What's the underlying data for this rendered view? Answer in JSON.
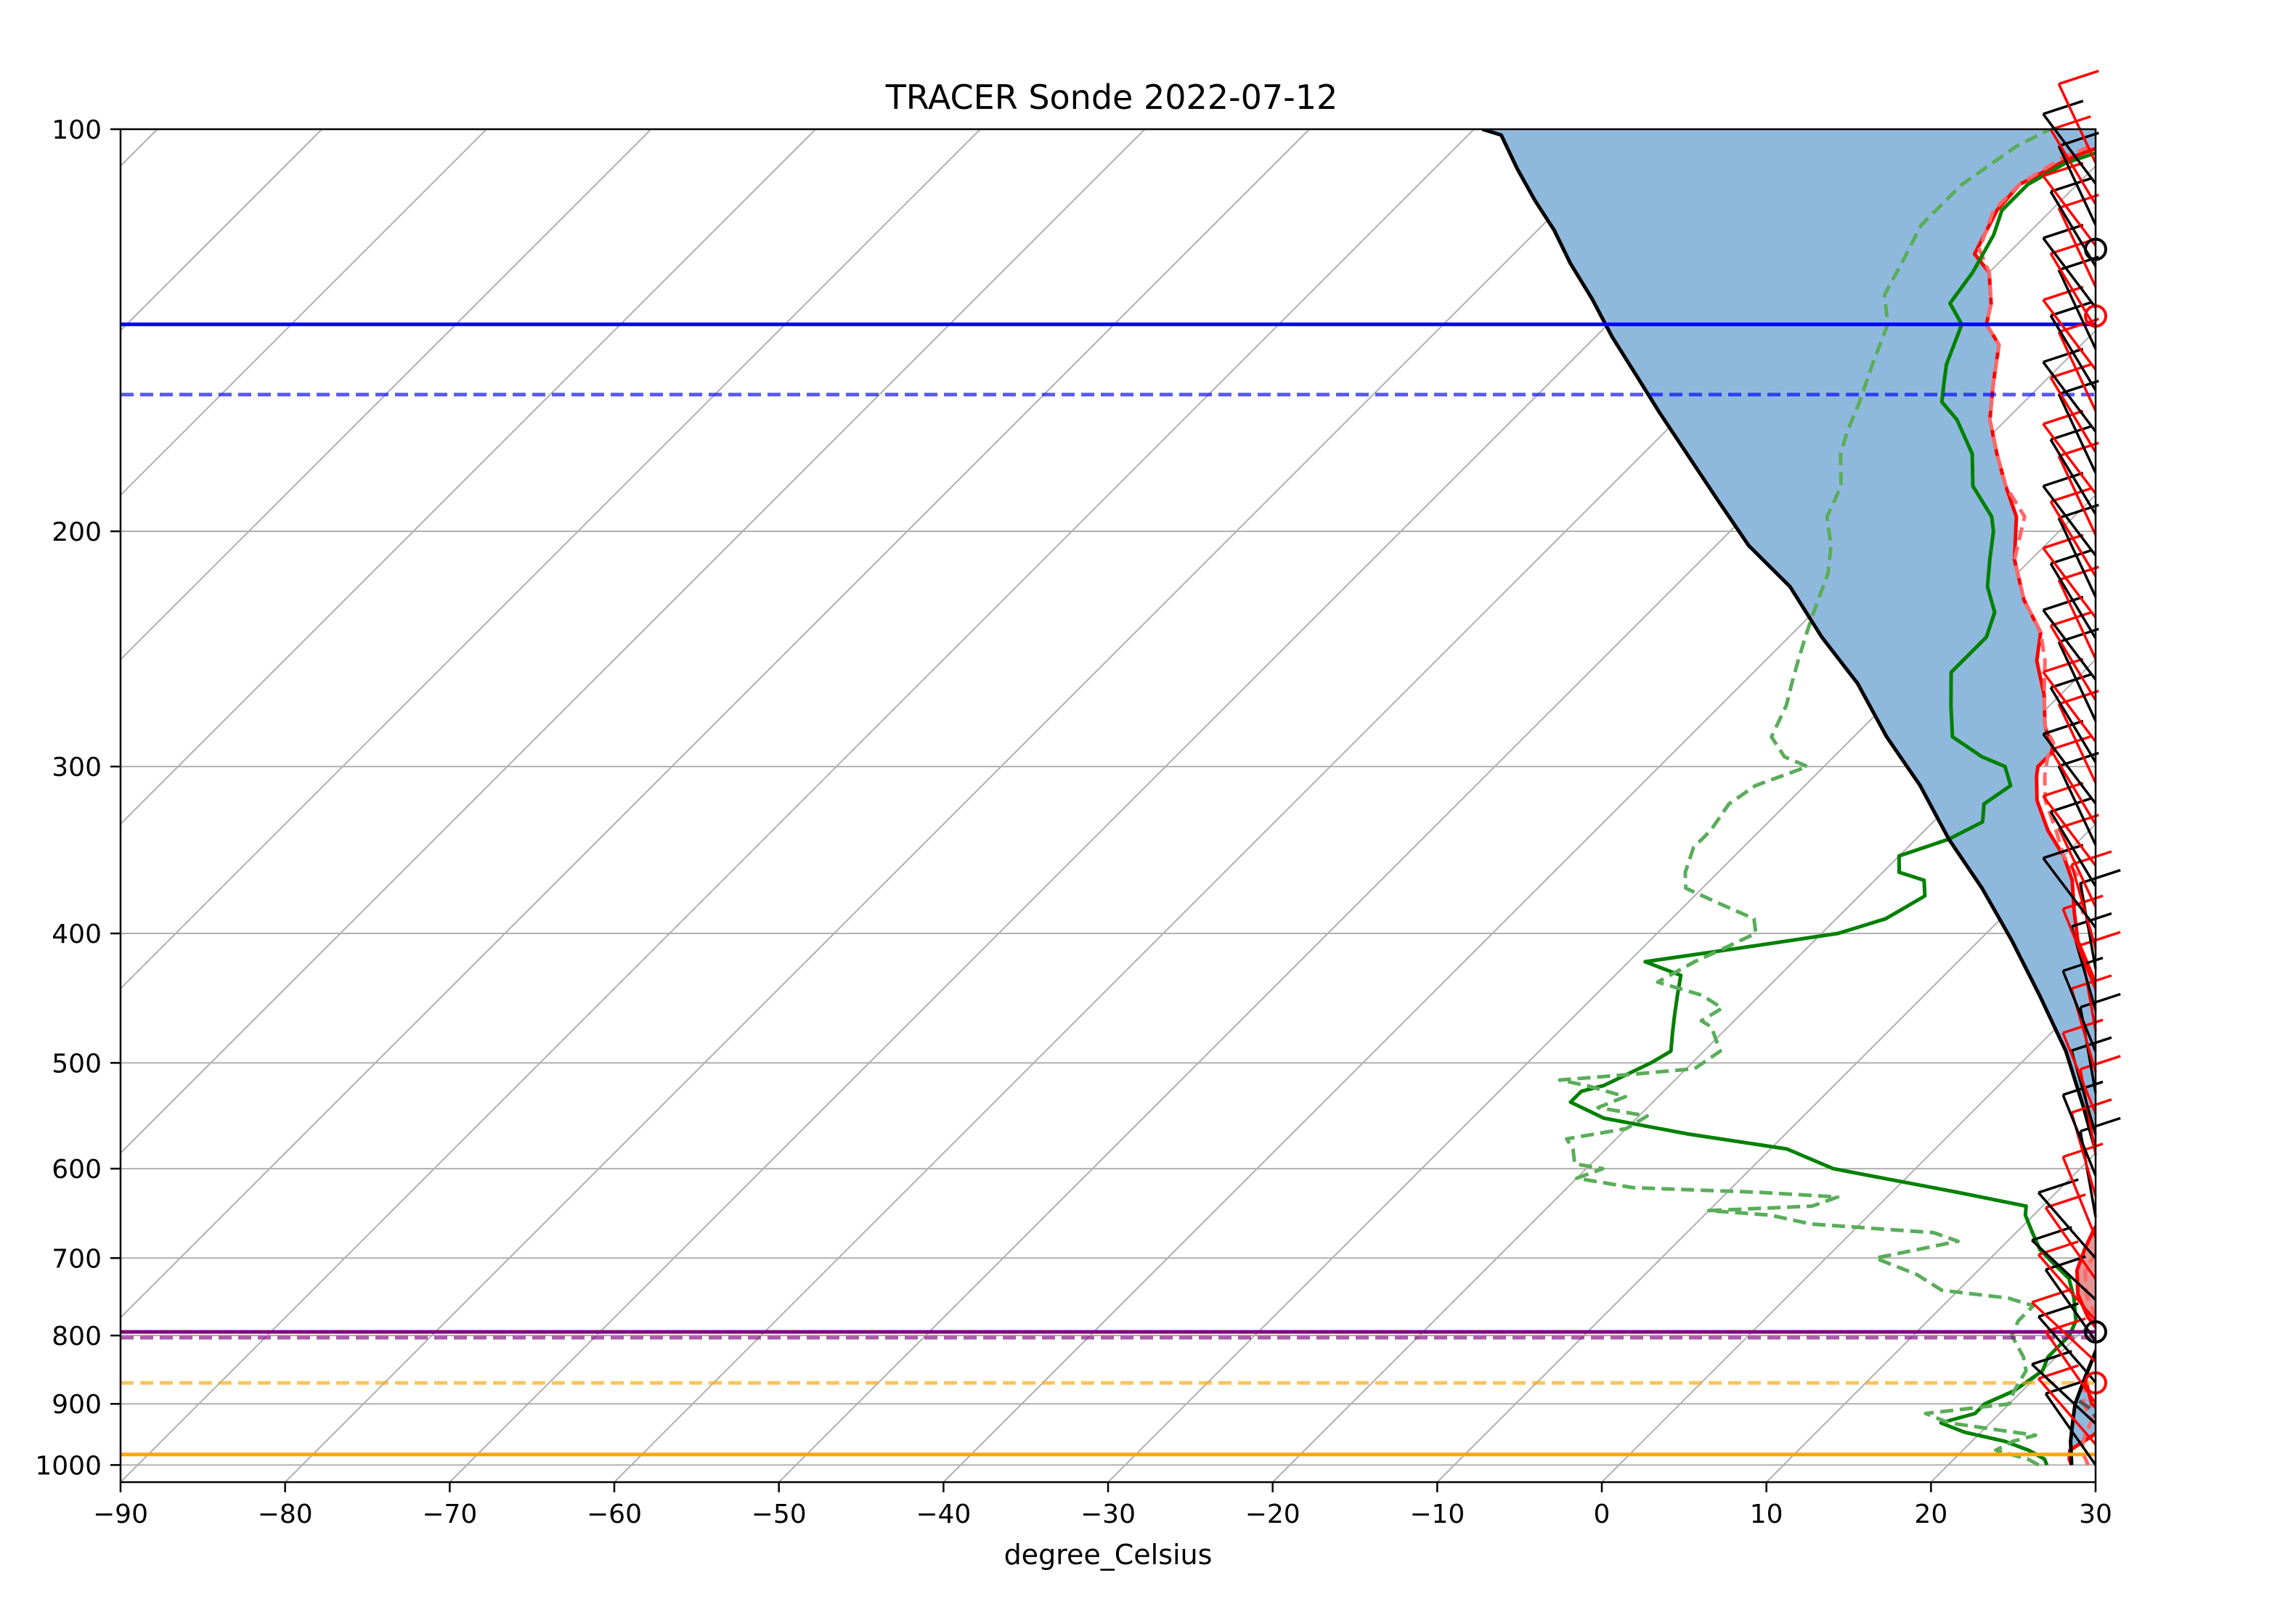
{
  "chart_data": {
    "type": "line",
    "title": "TRACER Sonde 2022-07-12",
    "xlabel": "degree_Celsius",
    "ylabel": "",
    "xlim": [
      -90,
      30
    ],
    "ylim": [
      1030,
      100
    ],
    "y_scale": "log",
    "grid": true,
    "x_ticks": [
      -90,
      -80,
      -70,
      -60,
      -50,
      -40,
      -30,
      -20,
      -10,
      0,
      10,
      20,
      30
    ],
    "y_ticks": [
      100,
      200,
      300,
      400,
      500,
      600,
      700,
      800,
      900,
      1000
    ],
    "skew_isotherms": [
      -200,
      -190,
      -180,
      -170,
      -160,
      -150,
      -140,
      -130,
      -120,
      -110,
      -100,
      -90,
      -80,
      -70,
      -60,
      -50,
      -40,
      -30,
      -20,
      -10,
      0,
      10,
      20,
      30
    ],
    "colors": {
      "temperature": "#ff0000",
      "temperature_alt": "#ff6666",
      "dewpoint": "#008000",
      "dewpoint_alt": "#5aad5a",
      "parcel": "#000000",
      "cape": "#e69595",
      "cin": "#8fb9dc",
      "lcl": "#800080",
      "lfc": "#ffa500",
      "el": "#0000ff",
      "grid": "#b0b0b0"
    },
    "series": [
      {
        "key": "temperature",
        "style": "solid",
        "points": [
          [
            27.5,
            1000
          ],
          [
            27,
            990
          ],
          [
            26.5,
            975
          ],
          [
            27,
            950
          ],
          [
            27.2,
            925
          ],
          [
            25,
            900
          ],
          [
            23,
            860
          ],
          [
            21.5,
            800
          ],
          [
            19.5,
            775
          ],
          [
            17.5,
            745
          ],
          [
            16,
            715
          ],
          [
            15.2,
            690
          ],
          [
            14.5,
            665
          ],
          [
            14.5,
            640
          ],
          [
            13.5,
            610
          ],
          [
            12.5,
            580
          ],
          [
            11,
            560
          ],
          [
            9,
            530
          ],
          [
            5.5,
            495
          ],
          [
            2,
            460
          ],
          [
            -1,
            430
          ],
          [
            -4,
            405
          ],
          [
            -6,
            385
          ],
          [
            -8,
            365
          ],
          [
            -10,
            350
          ],
          [
            -12.5,
            335
          ],
          [
            -15,
            318
          ],
          [
            -16.5,
            305
          ],
          [
            -17,
            300
          ],
          [
            -17,
            292
          ],
          [
            -19,
            280
          ],
          [
            -21,
            265
          ],
          [
            -23.5,
            250
          ],
          [
            -25,
            238
          ],
          [
            -28,
            225
          ],
          [
            -31,
            210
          ],
          [
            -33.5,
            195
          ],
          [
            -36,
            185
          ],
          [
            -38.5,
            175
          ],
          [
            -41,
            165
          ],
          [
            -43,
            155
          ],
          [
            -45,
            145
          ],
          [
            -47,
            140
          ],
          [
            -48,
            135
          ],
          [
            -50,
            128
          ],
          [
            -52,
            124
          ],
          [
            -53.3,
            115
          ],
          [
            -53.5,
            110
          ],
          [
            -52,
            105
          ],
          [
            -49,
            100
          ]
        ]
      },
      {
        "key": "temperature_alt",
        "style": "dashed",
        "points": [
          [
            28.5,
            1000
          ],
          [
            28,
            990
          ],
          [
            27.2,
            975
          ],
          [
            26.5,
            950
          ],
          [
            26,
            925
          ],
          [
            24.5,
            900
          ],
          [
            23,
            860
          ],
          [
            21.5,
            800
          ],
          [
            20,
            775
          ],
          [
            18,
            745
          ],
          [
            16.5,
            715
          ],
          [
            16,
            690
          ],
          [
            15.5,
            665
          ],
          [
            15.5,
            640
          ],
          [
            15,
            610
          ],
          [
            14.2,
            580
          ],
          [
            12.8,
            560
          ],
          [
            10,
            530
          ],
          [
            6,
            495
          ],
          [
            2.5,
            460
          ],
          [
            -0.5,
            430
          ],
          [
            -3,
            405
          ],
          [
            -5.5,
            385
          ],
          [
            -7.5,
            365
          ],
          [
            -10,
            350
          ],
          [
            -12,
            335
          ],
          [
            -14.5,
            318
          ],
          [
            -16,
            305
          ],
          [
            -17,
            295
          ],
          [
            -17.5,
            288
          ],
          [
            -19,
            280
          ],
          [
            -21,
            265
          ],
          [
            -23,
            250
          ],
          [
            -25,
            238
          ],
          [
            -28,
            225
          ],
          [
            -31,
            210
          ],
          [
            -33,
            195
          ],
          [
            -36,
            185
          ],
          [
            -38.5,
            175
          ],
          [
            -41,
            165
          ],
          [
            -43,
            155
          ],
          [
            -45,
            145
          ],
          [
            -47,
            140
          ],
          [
            -48,
            135
          ],
          [
            -50,
            128
          ],
          [
            -52,
            123
          ],
          [
            -53.5,
            115
          ],
          [
            -53.5,
            110
          ],
          [
            -52.5,
            105
          ],
          [
            -50,
            100
          ]
        ]
      },
      {
        "key": "dewpoint",
        "style": "solid",
        "points": [
          [
            26,
            1000
          ],
          [
            25.5,
            990
          ],
          [
            24,
            975
          ],
          [
            22,
            960
          ],
          [
            19,
            945
          ],
          [
            17,
            930
          ],
          [
            18.5,
            915
          ],
          [
            18.5,
            900
          ],
          [
            19.5,
            880
          ],
          [
            20,
            850
          ],
          [
            19.5,
            830
          ],
          [
            19.5,
            800
          ],
          [
            19,
            780
          ],
          [
            17.5,
            750
          ],
          [
            16,
            725
          ],
          [
            14.5,
            710
          ],
          [
            12.5,
            690
          ],
          [
            11,
            670
          ],
          [
            9.5,
            650
          ],
          [
            9,
            640
          ],
          [
            4,
            625
          ],
          [
            -5,
            600
          ],
          [
            -9,
            580
          ],
          [
            -16,
            565
          ],
          [
            -22,
            550
          ],
          [
            -25,
            535
          ],
          [
            -25,
            525
          ],
          [
            -24,
            520
          ],
          [
            -22.5,
            500
          ],
          [
            -22,
            490
          ],
          [
            -23,
            475
          ],
          [
            -24,
            460
          ],
          [
            -25,
            445
          ],
          [
            -26,
            430
          ],
          [
            -29,
            420
          ],
          [
            -24,
            410
          ],
          [
            -19,
            400
          ],
          [
            -17,
            390
          ],
          [
            -16,
            375
          ],
          [
            -17,
            365
          ],
          [
            -19,
            360
          ],
          [
            -20,
            350
          ],
          [
            -18,
            340
          ],
          [
            -17,
            330
          ],
          [
            -18,
            320
          ],
          [
            -17.5,
            310
          ],
          [
            -19,
            300
          ],
          [
            -21,
            295
          ],
          [
            -24,
            285
          ],
          [
            -26,
            270
          ],
          [
            -28,
            255
          ],
          [
            -28,
            245
          ],
          [
            -28,
            240
          ],
          [
            -29,
            230
          ],
          [
            -31,
            220
          ],
          [
            -32.5,
            210
          ],
          [
            -34,
            200
          ],
          [
            -35,
            195
          ],
          [
            -38,
            185
          ],
          [
            -40,
            175
          ],
          [
            -43,
            165
          ],
          [
            -45,
            160
          ],
          [
            -46,
            155
          ],
          [
            -47,
            150
          ],
          [
            -48.5,
            140
          ],
          [
            -50.5,
            135
          ],
          [
            -51,
            128
          ],
          [
            -52,
            120
          ],
          [
            -53,
            115
          ],
          [
            -53,
            110
          ],
          [
            -52,
            106
          ],
          [
            -50,
            103
          ],
          [
            -47,
            100
          ]
        ]
      },
      {
        "key": "dewpoint_alt",
        "style": "dashed",
        "points": [
          [
            25.5,
            1000
          ],
          [
            24.5,
            990
          ],
          [
            22,
            975
          ],
          [
            22.5,
            960
          ],
          [
            23.5,
            950
          ],
          [
            20.5,
            940
          ],
          [
            17.5,
            930
          ],
          [
            15.5,
            915
          ],
          [
            20,
            900
          ],
          [
            19.5,
            880
          ],
          [
            19,
            850
          ],
          [
            18,
            830
          ],
          [
            16,
            800
          ],
          [
            15.5,
            780
          ],
          [
            15.5,
            760
          ],
          [
            13.5,
            750
          ],
          [
            9,
            740
          ],
          [
            6.5,
            720
          ],
          [
            3,
            700
          ],
          [
            5,
            690
          ],
          [
            7,
            680
          ],
          [
            5,
            670
          ],
          [
            -3,
            660
          ],
          [
            -6,
            650
          ],
          [
            -10,
            645
          ],
          [
            -4,
            640
          ],
          [
            -3,
            630
          ],
          [
            -8,
            625
          ],
          [
            -16,
            620
          ],
          [
            -20,
            610
          ],
          [
            -19,
            600
          ],
          [
            -21,
            595
          ],
          [
            -22,
            580
          ],
          [
            -23,
            570
          ],
          [
            -20,
            560
          ],
          [
            -19.5,
            548
          ],
          [
            -23,
            540
          ],
          [
            -22,
            530
          ],
          [
            -25,
            520
          ],
          [
            -27,
            515
          ],
          [
            -23,
            510
          ],
          [
            -19.5,
            505
          ],
          [
            -19,
            490
          ],
          [
            -20,
            480
          ],
          [
            -21,
            470
          ],
          [
            -22,
            465
          ],
          [
            -21.5,
            455
          ],
          [
            -23.5,
            445
          ],
          [
            -27,
            435
          ],
          [
            -26,
            420
          ],
          [
            -25,
            410
          ],
          [
            -24,
            400
          ],
          [
            -25,
            390
          ],
          [
            -28,
            380
          ],
          [
            -31,
            370
          ],
          [
            -32,
            360
          ],
          [
            -33,
            345
          ],
          [
            -33,
            335
          ],
          [
            -33.5,
            320
          ],
          [
            -33,
            310
          ],
          [
            -31,
            300
          ],
          [
            -33,
            295
          ],
          [
            -35,
            285
          ],
          [
            -36,
            270
          ],
          [
            -37,
            260
          ],
          [
            -38,
            250
          ],
          [
            -39,
            240
          ],
          [
            -40,
            230
          ],
          [
            -41.5,
            215
          ],
          [
            -43,
            205
          ],
          [
            -45,
            195
          ],
          [
            -46,
            185
          ],
          [
            -48,
            175
          ],
          [
            -49,
            168
          ],
          [
            -50,
            160
          ],
          [
            -51.5,
            150
          ],
          [
            -53,
            140
          ],
          [
            -55,
            133
          ],
          [
            -56,
            125
          ],
          [
            -57,
            118
          ],
          [
            -57,
            110
          ],
          [
            -56,
            103
          ],
          [
            -55,
            100
          ]
        ]
      },
      {
        "key": "parcel",
        "style": "solid",
        "points": [
          [
            27.5,
            1000
          ],
          [
            26,
            960
          ],
          [
            25,
            930
          ],
          [
            24,
            900
          ],
          [
            23,
            860
          ],
          [
            22,
            820
          ],
          [
            21.5,
            800
          ],
          [
            18,
            720
          ],
          [
            14.5,
            650
          ],
          [
            10.5,
            590
          ],
          [
            6.5,
            540
          ],
          [
            2,
            490
          ],
          [
            -3,
            445
          ],
          [
            -8,
            405
          ],
          [
            -13,
            370
          ],
          [
            -18,
            340
          ],
          [
            -23,
            310
          ],
          [
            -28,
            285
          ],
          [
            -33,
            260
          ],
          [
            -38,
            240
          ],
          [
            -43,
            220
          ],
          [
            -48,
            205
          ],
          [
            -52.5,
            190
          ],
          [
            -57,
            176
          ],
          [
            -61.5,
            163
          ],
          [
            -65.5,
            152
          ],
          [
            -69,
            143
          ],
          [
            -72.5,
            134
          ],
          [
            -76,
            126
          ],
          [
            -79,
            119
          ],
          [
            -82,
            113
          ],
          [
            -85,
            107
          ],
          [
            -88,
            101
          ],
          [
            -89.5,
            100
          ]
        ]
      },
      {
        "key": "parcel_virtual",
        "style": "dashed",
        "points": [
          [
            30,
            960
          ],
          [
            29,
            950
          ],
          [
            27.5,
            940
          ],
          [
            26,
            920
          ],
          [
            25,
            905
          ],
          [
            24,
            895
          ]
        ]
      }
    ],
    "levels": [
      {
        "key": "lcl",
        "pressure": 795,
        "style": "solid"
      },
      {
        "key": "lcl",
        "pressure": 803,
        "style": "dashed"
      },
      {
        "key": "lfc",
        "pressure": 868,
        "style": "dashed"
      },
      {
        "key": "lfc",
        "pressure": 982,
        "style": "solid"
      },
      {
        "key": "el",
        "pressure": 140,
        "style": "solid"
      },
      {
        "key": "el",
        "pressure": 158,
        "style": "dashed"
      }
    ],
    "wind_barbs": {
      "black_circles": [
        123,
        795
      ],
      "red_circles": [
        138,
        868
      ]
    }
  }
}
